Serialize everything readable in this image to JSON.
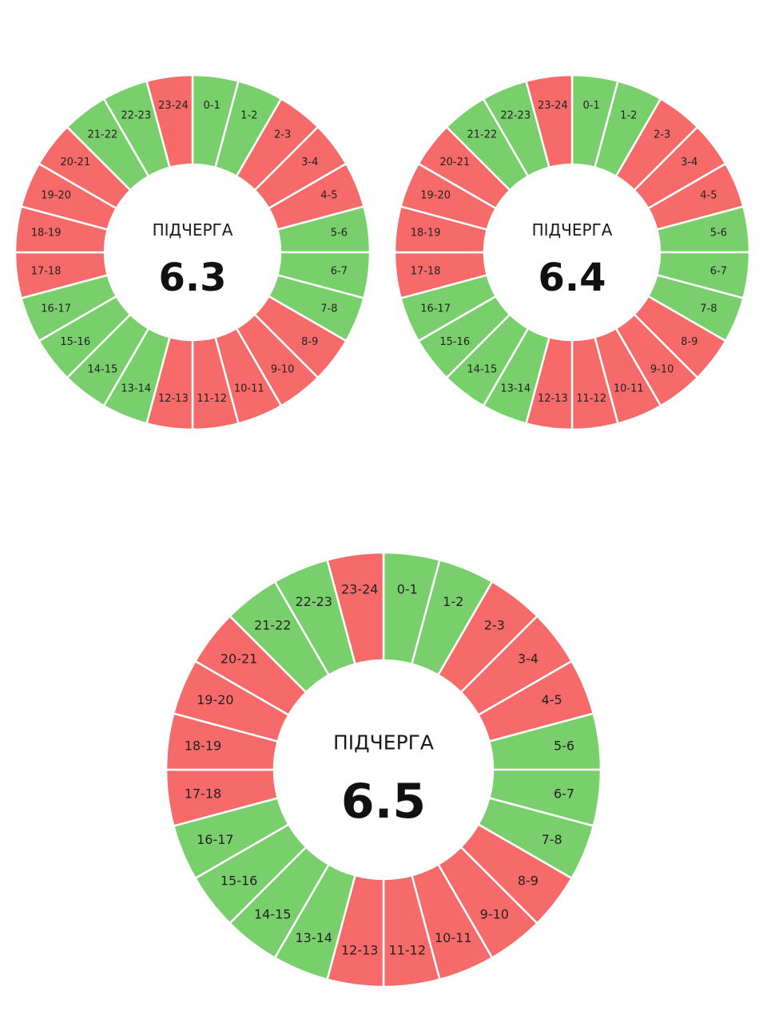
{
  "colors": {
    "on": "#79cf6c",
    "off": "#f66a6a",
    "separator": "#ffffff"
  },
  "chart_data": [
    {
      "type": "pie",
      "variant": "donut",
      "title": "ПІДЧЕРГА",
      "value": "6.3",
      "categories": [
        "0-1",
        "1-2",
        "2-3",
        "3-4",
        "4-5",
        "5-6",
        "6-7",
        "7-8",
        "8-9",
        "9-10",
        "10-11",
        "11-12",
        "12-13",
        "13-14",
        "14-15",
        "15-16",
        "16-17",
        "17-18",
        "18-19",
        "19-20",
        "20-21",
        "21-22",
        "22-23",
        "23-24"
      ],
      "status": [
        "on",
        "on",
        "off",
        "off",
        "off",
        "on",
        "on",
        "on",
        "off",
        "off",
        "off",
        "off",
        "off",
        "on",
        "on",
        "on",
        "on",
        "off",
        "off",
        "off",
        "off",
        "on",
        "on",
        "off"
      ]
    },
    {
      "type": "pie",
      "variant": "donut",
      "title": "ПІДЧЕРГА",
      "value": "6.4",
      "categories": [
        "0-1",
        "1-2",
        "2-3",
        "3-4",
        "4-5",
        "5-6",
        "6-7",
        "7-8",
        "8-9",
        "9-10",
        "10-11",
        "11-12",
        "12-13",
        "13-14",
        "14-15",
        "15-16",
        "16-17",
        "17-18",
        "18-19",
        "19-20",
        "20-21",
        "21-22",
        "22-23",
        "23-24"
      ],
      "status": [
        "on",
        "on",
        "off",
        "off",
        "off",
        "on",
        "on",
        "on",
        "off",
        "off",
        "off",
        "off",
        "off",
        "on",
        "on",
        "on",
        "on",
        "off",
        "off",
        "off",
        "off",
        "on",
        "on",
        "off"
      ]
    },
    {
      "type": "pie",
      "variant": "donut",
      "title": "ПІДЧЕРГА",
      "value": "6.5",
      "categories": [
        "0-1",
        "1-2",
        "2-3",
        "3-4",
        "4-5",
        "5-6",
        "6-7",
        "7-8",
        "8-9",
        "9-10",
        "10-11",
        "11-12",
        "12-13",
        "13-14",
        "14-15",
        "15-16",
        "16-17",
        "17-18",
        "18-19",
        "19-20",
        "20-21",
        "21-22",
        "22-23",
        "23-24"
      ],
      "status": [
        "on",
        "on",
        "off",
        "off",
        "off",
        "on",
        "on",
        "on",
        "off",
        "off",
        "off",
        "off",
        "off",
        "on",
        "on",
        "on",
        "on",
        "off",
        "off",
        "off",
        "off",
        "on",
        "on",
        "off"
      ]
    }
  ]
}
